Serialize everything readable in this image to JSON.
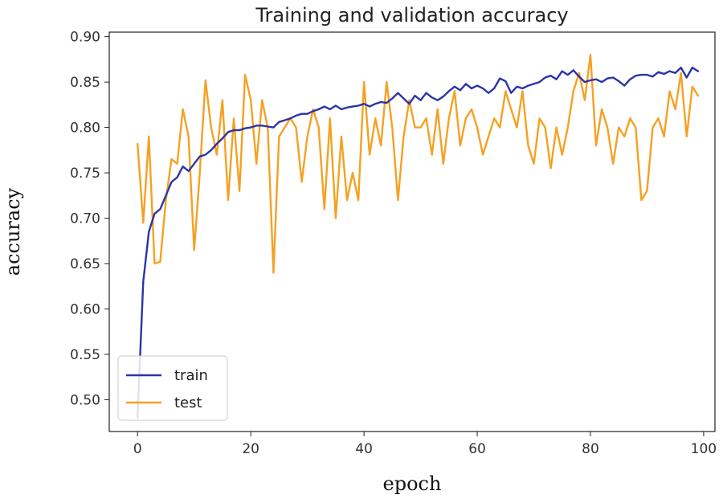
{
  "chart_data": {
    "type": "line",
    "title": "Training and validation accuracy",
    "xlabel": "epoch",
    "ylabel": "accuracy",
    "xlim": [
      -5,
      102
    ],
    "ylim": [
      0.465,
      0.905
    ],
    "xticks": [
      0,
      20,
      40,
      60,
      80,
      100
    ],
    "yticks": [
      0.5,
      0.55,
      0.6,
      0.65,
      0.7,
      0.75,
      0.8,
      0.85,
      0.9
    ],
    "legend_position": "lower-left",
    "series": [
      {
        "name": "train",
        "color": "#2b35a8",
        "x": [
          0,
          1,
          2,
          3,
          4,
          5,
          6,
          7,
          8,
          9,
          10,
          11,
          12,
          13,
          14,
          15,
          16,
          17,
          18,
          19,
          20,
          21,
          22,
          23,
          24,
          25,
          26,
          27,
          28,
          29,
          30,
          31,
          32,
          33,
          34,
          35,
          36,
          37,
          38,
          39,
          40,
          41,
          42,
          43,
          44,
          45,
          46,
          47,
          48,
          49,
          50,
          51,
          52,
          53,
          54,
          55,
          56,
          57,
          58,
          59,
          60,
          61,
          62,
          63,
          64,
          65,
          66,
          67,
          68,
          69,
          70,
          71,
          72,
          73,
          74,
          75,
          76,
          77,
          78,
          79,
          80,
          81,
          82,
          83,
          84,
          85,
          86,
          87,
          88,
          89,
          90,
          91,
          92,
          93,
          94,
          95,
          96,
          97,
          98,
          99
        ],
        "values": [
          0.48,
          0.63,
          0.685,
          0.705,
          0.71,
          0.725,
          0.74,
          0.745,
          0.757,
          0.752,
          0.76,
          0.768,
          0.77,
          0.775,
          0.782,
          0.788,
          0.795,
          0.797,
          0.797,
          0.799,
          0.8,
          0.802,
          0.802,
          0.801,
          0.8,
          0.806,
          0.808,
          0.81,
          0.813,
          0.815,
          0.815,
          0.818,
          0.82,
          0.823,
          0.82,
          0.824,
          0.82,
          0.822,
          0.823,
          0.824,
          0.826,
          0.823,
          0.826,
          0.828,
          0.827,
          0.832,
          0.838,
          0.832,
          0.826,
          0.835,
          0.83,
          0.838,
          0.833,
          0.83,
          0.834,
          0.84,
          0.845,
          0.841,
          0.848,
          0.843,
          0.846,
          0.843,
          0.838,
          0.843,
          0.854,
          0.851,
          0.838,
          0.845,
          0.843,
          0.846,
          0.848,
          0.85,
          0.855,
          0.857,
          0.853,
          0.862,
          0.858,
          0.863,
          0.856,
          0.85,
          0.852,
          0.853,
          0.85,
          0.854,
          0.855,
          0.851,
          0.846,
          0.853,
          0.857,
          0.858,
          0.858,
          0.856,
          0.861,
          0.859,
          0.862,
          0.86,
          0.866,
          0.855,
          0.866,
          0.862
        ]
      },
      {
        "name": "test",
        "color": "#f5a123",
        "x": [
          0,
          1,
          2,
          3,
          4,
          5,
          6,
          7,
          8,
          9,
          10,
          11,
          12,
          13,
          14,
          15,
          16,
          17,
          18,
          19,
          20,
          21,
          22,
          23,
          24,
          25,
          26,
          27,
          28,
          29,
          30,
          31,
          32,
          33,
          34,
          35,
          36,
          37,
          38,
          39,
          40,
          41,
          42,
          43,
          44,
          45,
          46,
          47,
          48,
          49,
          50,
          51,
          52,
          53,
          54,
          55,
          56,
          57,
          58,
          59,
          60,
          61,
          62,
          63,
          64,
          65,
          66,
          67,
          68,
          69,
          70,
          71,
          72,
          73,
          74,
          75,
          76,
          77,
          78,
          79,
          80,
          81,
          82,
          83,
          84,
          85,
          86,
          87,
          88,
          89,
          90,
          91,
          92,
          93,
          94,
          95,
          96,
          97,
          98,
          99
        ],
        "values": [
          0.782,
          0.695,
          0.79,
          0.65,
          0.652,
          0.72,
          0.765,
          0.76,
          0.82,
          0.79,
          0.665,
          0.75,
          0.852,
          0.8,
          0.77,
          0.83,
          0.72,
          0.81,
          0.73,
          0.858,
          0.83,
          0.76,
          0.83,
          0.8,
          0.64,
          0.79,
          0.8,
          0.81,
          0.8,
          0.74,
          0.79,
          0.82,
          0.8,
          0.71,
          0.81,
          0.7,
          0.79,
          0.72,
          0.75,
          0.72,
          0.85,
          0.77,
          0.81,
          0.78,
          0.85,
          0.8,
          0.72,
          0.79,
          0.83,
          0.8,
          0.8,
          0.81,
          0.77,
          0.82,
          0.76,
          0.81,
          0.84,
          0.78,
          0.81,
          0.82,
          0.8,
          0.77,
          0.79,
          0.81,
          0.8,
          0.84,
          0.82,
          0.8,
          0.84,
          0.78,
          0.76,
          0.81,
          0.8,
          0.755,
          0.8,
          0.77,
          0.8,
          0.84,
          0.86,
          0.83,
          0.88,
          0.78,
          0.82,
          0.8,
          0.76,
          0.8,
          0.79,
          0.81,
          0.8,
          0.72,
          0.73,
          0.8,
          0.81,
          0.79,
          0.84,
          0.82,
          0.86,
          0.79,
          0.845,
          0.835
        ]
      }
    ]
  }
}
